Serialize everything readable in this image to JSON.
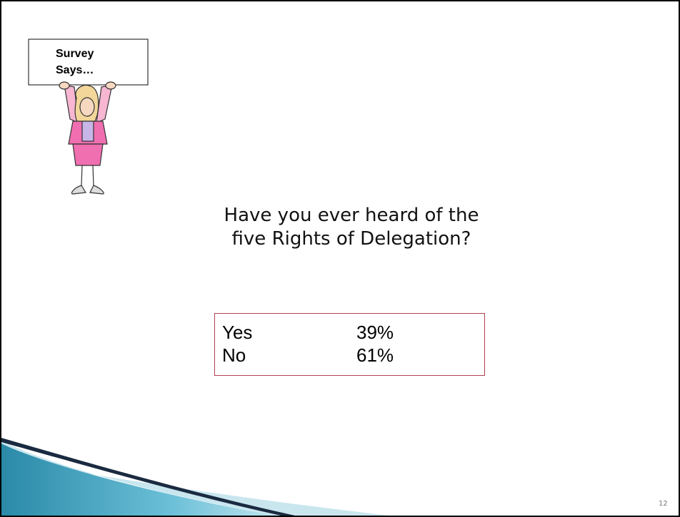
{
  "sign": {
    "lines": [
      "Survey",
      "Says…"
    ]
  },
  "question": {
    "lines": [
      "Have you ever heard of the",
      "five Rights of Delegation?"
    ]
  },
  "table": {
    "rows": [
      [
        "Yes",
        "39%"
      ],
      [
        "No",
        "61%"
      ]
    ]
  },
  "footer": {
    "page_number": "12"
  }
}
